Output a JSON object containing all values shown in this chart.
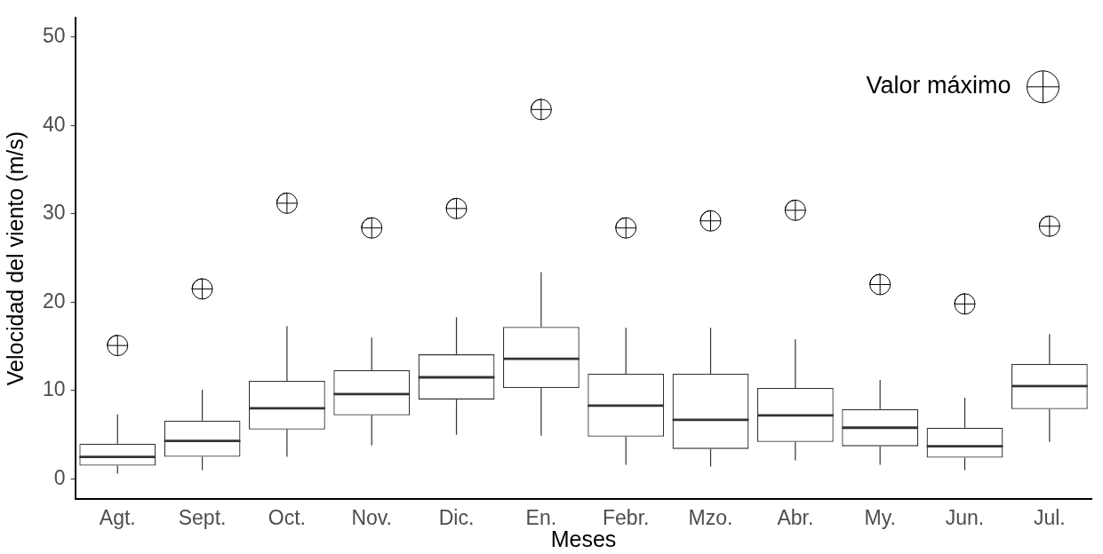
{
  "chart_data": {
    "type": "box",
    "xlabel": "Meses",
    "ylabel": "Velocidad del viento (m/s)",
    "categories": [
      "Agt.",
      "Sept.",
      "Oct.",
      "Nov.",
      "Dic.",
      "En.",
      "Febr.",
      "Mzo.",
      "Abr.",
      "My.",
      "Jun.",
      "Jul."
    ],
    "color": "#333333",
    "boxes": [
      {
        "low": 0.6,
        "q1": 1.5,
        "median": 2.5,
        "q3": 4.0,
        "high": 7.3
      },
      {
        "low": 1.0,
        "q1": 2.5,
        "median": 4.3,
        "q3": 6.6,
        "high": 10.1
      },
      {
        "low": 2.5,
        "q1": 5.6,
        "median": 8.0,
        "q3": 11.1,
        "high": 17.3
      },
      {
        "low": 3.8,
        "q1": 7.2,
        "median": 9.6,
        "q3": 12.3,
        "high": 16.0
      },
      {
        "low": 5.0,
        "q1": 9.0,
        "median": 11.5,
        "q3": 14.1,
        "high": 18.3
      },
      {
        "low": 4.9,
        "q1": 10.3,
        "median": 13.6,
        "q3": 17.2,
        "high": 23.4
      },
      {
        "low": 1.6,
        "q1": 4.8,
        "median": 8.3,
        "q3": 11.9,
        "high": 17.1
      },
      {
        "low": 1.4,
        "q1": 3.4,
        "median": 6.7,
        "q3": 11.9,
        "high": 17.1
      },
      {
        "low": 2.1,
        "q1": 4.2,
        "median": 7.2,
        "q3": 10.3,
        "high": 15.8
      },
      {
        "low": 1.6,
        "q1": 3.7,
        "median": 5.8,
        "q3": 7.9,
        "high": 11.2
      },
      {
        "low": 1.0,
        "q1": 2.4,
        "median": 3.7,
        "q3": 5.8,
        "high": 9.2
      },
      {
        "low": 4.2,
        "q1": 7.9,
        "median": 10.5,
        "q3": 13.0,
        "high": 16.4
      }
    ],
    "series": [
      {
        "name": "Valor máximo",
        "type": "scatter",
        "color": "#000000",
        "x": [
          "Agt.",
          "Sept.",
          "Oct.",
          "Nov.",
          "Dic.",
          "En.",
          "Febr.",
          "Mzo.",
          "Abr.",
          "My.",
          "Jun.",
          "Jul."
        ],
        "values": [
          15.1,
          21.5,
          31.2,
          28.4,
          30.6,
          41.8,
          28.4,
          29.2,
          30.4,
          22.0,
          19.8,
          28.6
        ]
      }
    ],
    "marker": "cross",
    "legend": "top right",
    "ylim": [
      -2.3,
      52.2
    ],
    "yticks": [
      0,
      10,
      20,
      30,
      40,
      50
    ],
    "grid": false
  }
}
